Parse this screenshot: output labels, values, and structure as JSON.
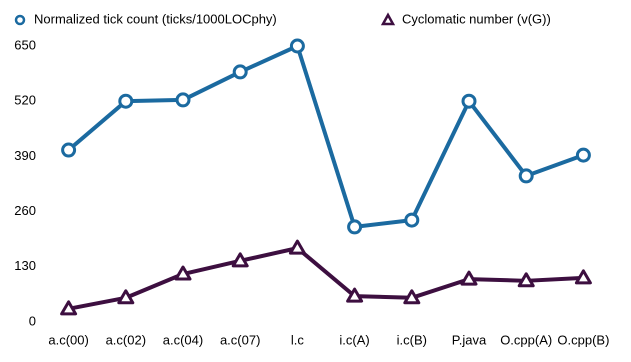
{
  "chart_data": {
    "type": "line",
    "categories": [
      "a.c(00)",
      "a.c(02)",
      "a.c(04)",
      "a.c(07)",
      "l.c",
      "i.c(A)",
      "i.c(B)",
      "P.java",
      "O.cpp(A)",
      "O.cpp(B)"
    ],
    "series": [
      {
        "name": "Normalized tick count (ticks/1000LOCphy)",
        "color": "#1b6aa0",
        "marker": "circle",
        "values": [
          405,
          520,
          523,
          589,
          650,
          224,
          240,
          520,
          344,
          393
        ]
      },
      {
        "name": "Cyclomatic number (v(G))",
        "color": "#3d0f40",
        "marker": "triangle",
        "values": [
          31,
          57,
          113,
          144,
          174,
          61,
          57,
          101,
          97,
          104
        ]
      }
    ],
    "ylim": [
      0,
      650
    ],
    "yticks": [
      0,
      130,
      260,
      390,
      520,
      650
    ],
    "legend": "top"
  }
}
